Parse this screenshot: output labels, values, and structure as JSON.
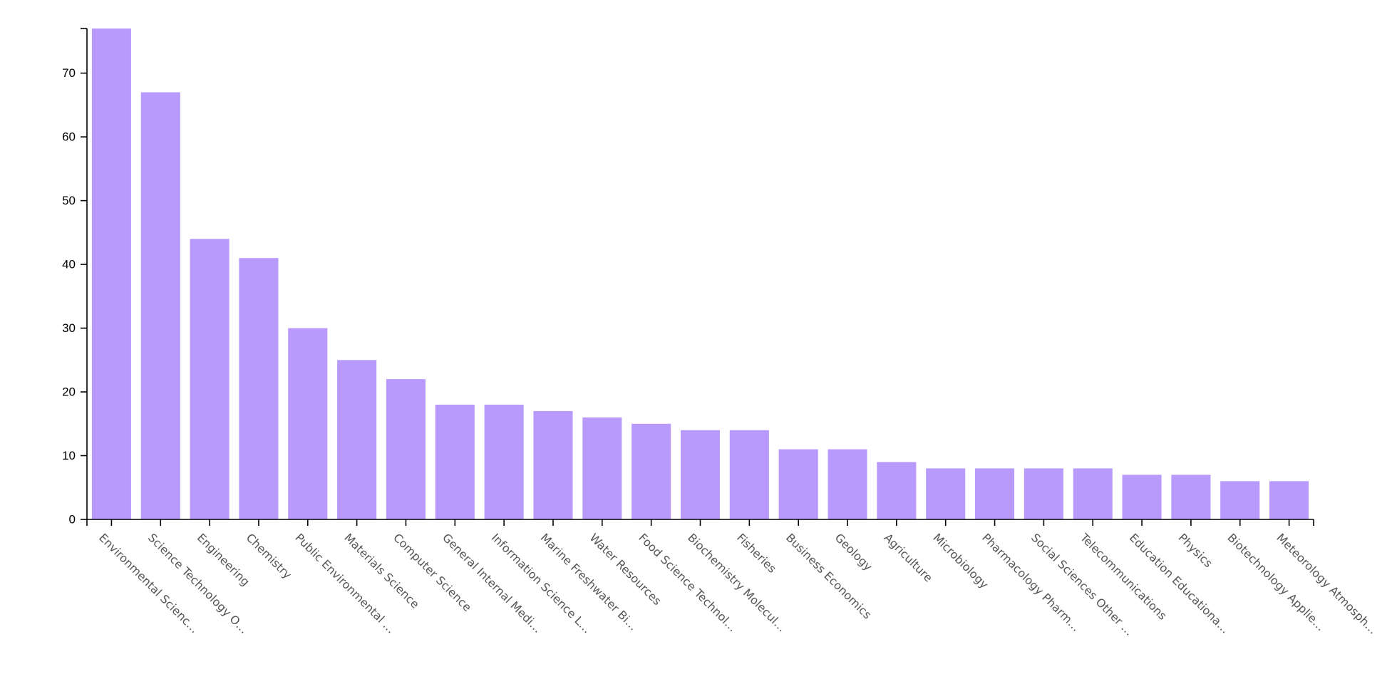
{
  "chart_data": {
    "type": "bar",
    "title": "",
    "xlabel": "",
    "ylabel": "",
    "ylim": [
      0,
      77
    ],
    "yticks": [
      0,
      10,
      20,
      30,
      40,
      50,
      60,
      70
    ],
    "grid": false,
    "legend": "none",
    "bar_color": "#b899fc",
    "categories": [
      "Environmental Scienc…",
      "Science Technology O…",
      "Engineering",
      "Chemistry",
      "Public Environmental …",
      "Materials Science",
      "Computer Science",
      "General Internal Medi…",
      "Information Science L…",
      "Marine Freshwater Bi…",
      "Water Resources",
      "Food Science Technol…",
      "Biochemistry Molecul…",
      "Fisheries",
      "Business Economics",
      "Geology",
      "Agriculture",
      "Microbiology",
      "Pharmacology Pharm…",
      "Social Sciences Other …",
      "Telecommunications",
      "Education Educationa…",
      "Physics",
      "Biotechnology Applie…",
      "Meteorology Atmosph…"
    ],
    "values": [
      77,
      67,
      44,
      41,
      30,
      25,
      22,
      18,
      18,
      17,
      16,
      15,
      14,
      14,
      11,
      11,
      9,
      8,
      8,
      8,
      8,
      7,
      7,
      6,
      6
    ]
  }
}
